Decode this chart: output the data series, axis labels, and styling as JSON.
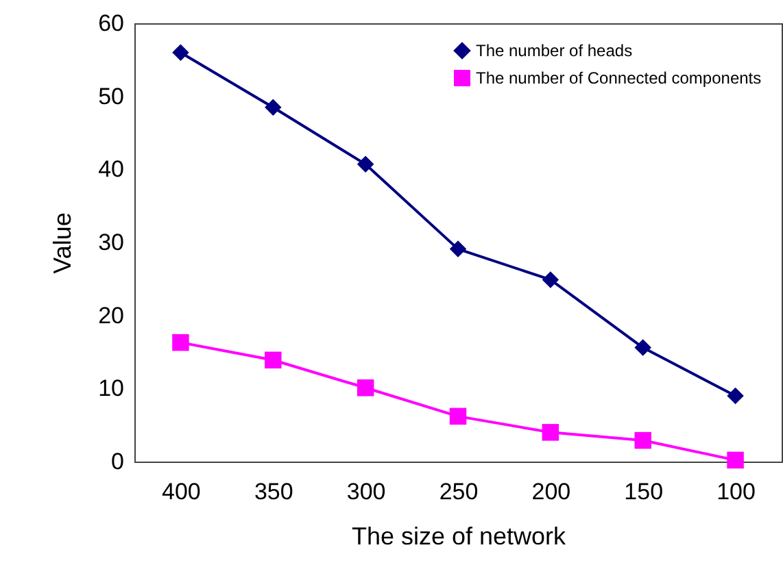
{
  "chart_data": {
    "type": "line",
    "xlabel": "The size of network",
    "ylabel": "Value",
    "categories": [
      "400",
      "350",
      "300",
      "250",
      "200",
      "150",
      "100"
    ],
    "series": [
      {
        "name": "The number of heads",
        "color": "#000080",
        "marker": "diamond",
        "values": [
          56,
          48.5,
          40.7,
          29.1,
          24.9,
          15.6,
          9
        ]
      },
      {
        "name": "The number of Connected components",
        "color": "#ff00ff",
        "marker": "square",
        "values": [
          16.3,
          13.9,
          10.1,
          6.2,
          4.0,
          2.9,
          0.2
        ]
      }
    ],
    "ylim": [
      0,
      60
    ],
    "yticks": [
      0,
      10,
      20,
      30,
      40,
      50,
      60
    ],
    "grid": false,
    "legend": "top right",
    "line_style": "solid"
  }
}
